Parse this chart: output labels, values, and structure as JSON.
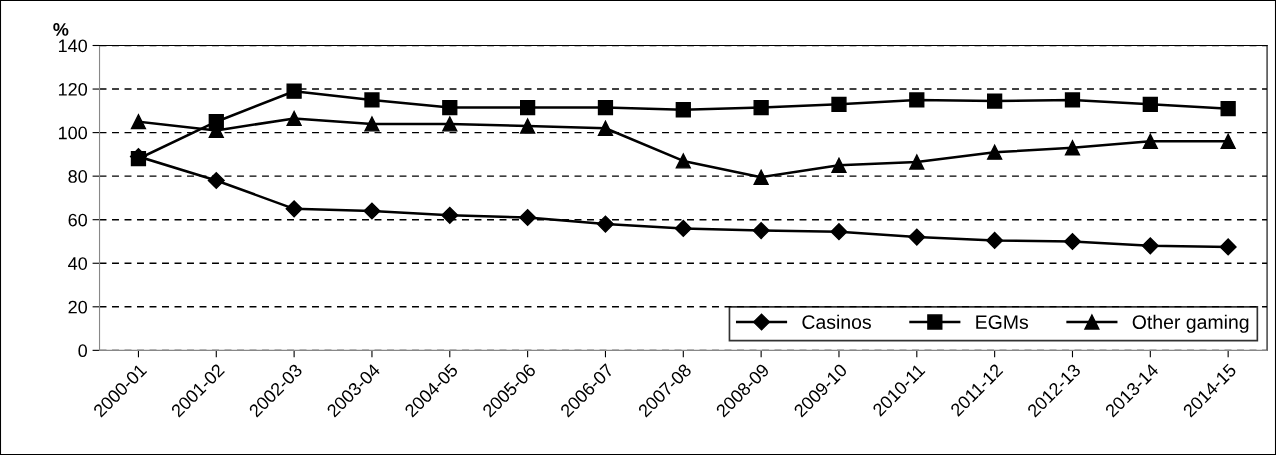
{
  "chart_data": {
    "type": "line",
    "ylabel": "%",
    "categories": [
      "2000-01",
      "2001-02",
      "2002-03",
      "2003-04",
      "2004-05",
      "2005-06",
      "2006-07",
      "2007-08",
      "2008-09",
      "2009-10",
      "2010-11",
      "2011-12",
      "2012-13",
      "2013-14",
      "2014-15"
    ],
    "series": [
      {
        "name": "Casinos",
        "color": "#000000",
        "marker": "diamond",
        "values": [
          89,
          78,
          65,
          64,
          62,
          61,
          58,
          56,
          55,
          54.5,
          52,
          50.5,
          50,
          48,
          47.5
        ]
      },
      {
        "name": "EGMs",
        "color": "#000000",
        "marker": "square",
        "values": [
          88,
          105,
          119,
          115,
          111.5,
          111.5,
          111.5,
          110.5,
          111.5,
          113,
          115,
          114.5,
          115,
          113,
          111
        ]
      },
      {
        "name": "Other gaming",
        "color": "#000000",
        "marker": "triangle",
        "values": [
          105,
          101,
          106.5,
          104,
          104,
          103,
          102,
          87,
          79.5,
          85,
          86.5,
          91,
          93,
          96,
          96
        ]
      }
    ],
    "ylim": [
      0,
      140
    ],
    "yticks": [
      0,
      20,
      40,
      60,
      80,
      100,
      120,
      140
    ],
    "grid": "y",
    "legend": "bottom right",
    "line_style": "solid"
  }
}
